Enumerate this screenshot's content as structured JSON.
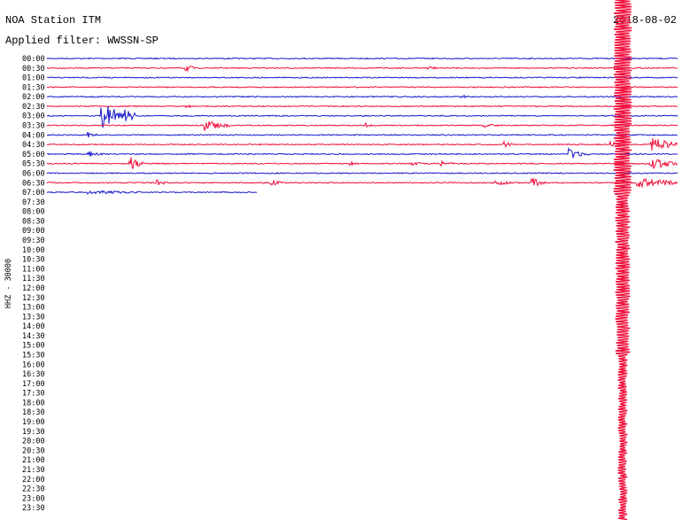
{
  "header": {
    "title": "NOA Station ITM",
    "filter": "Applied filter: WWSSN-SP",
    "date": "2018-08-02"
  },
  "channel_label": "HHZ - 30000",
  "rows": [
    "00:00",
    "00:30",
    "01:00",
    "01:30",
    "02:00",
    "02:30",
    "03:00",
    "03:30",
    "04:00",
    "04:30",
    "05:00",
    "05:30",
    "06:00",
    "06:30",
    "07:00",
    "07:30",
    "08:00",
    "08:30",
    "09:00",
    "09:30",
    "10:00",
    "10:30",
    "11:00",
    "11:30",
    "12:00",
    "12:30",
    "13:00",
    "13:30",
    "14:00",
    "14:30",
    "15:00",
    "15:30",
    "16:00",
    "16:30",
    "17:00",
    "17:30",
    "18:00",
    "18:30",
    "19:00",
    "19:30",
    "20:00",
    "20:30",
    "21:00",
    "21:30",
    "22:00",
    "22:30",
    "23:00",
    "23:30"
  ]
}
